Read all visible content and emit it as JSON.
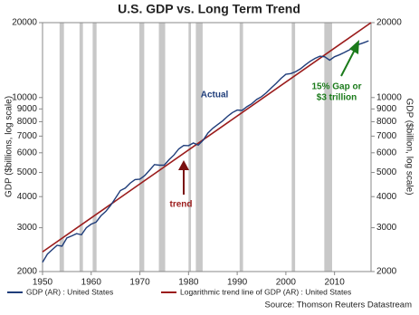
{
  "chart_data": {
    "type": "line",
    "title": "U.S. GDP vs. Long Term Trend",
    "y_label": "GDP ($billions, log scale)",
    "y2_label": "GDP ($billion, log scale)",
    "log_scale": true,
    "y2_mirrors_y": true,
    "xlim": [
      1950,
      2017.5
    ],
    "xticks": [
      1950,
      1960,
      1970,
      1980,
      1990,
      2000,
      2010
    ],
    "ylim": [
      2000,
      20000
    ],
    "yticks": [
      2000,
      3000,
      4000,
      5000,
      6000,
      7000,
      8000,
      9000,
      10000,
      20000
    ],
    "y2lim": [
      2000,
      20000
    ],
    "y2ticks": [
      2000,
      3000,
      4000,
      5000,
      6000,
      7000,
      8000,
      9000,
      10000,
      20000
    ],
    "recessions": [
      [
        1953.5,
        1954.4
      ],
      [
        1957.6,
        1958.3
      ],
      [
        1960.3,
        1961.1
      ],
      [
        1969.9,
        1970.9
      ],
      [
        1973.9,
        1975.2
      ],
      [
        1980.0,
        1980.5
      ],
      [
        1981.5,
        1982.9
      ],
      [
        1990.5,
        1991.2
      ],
      [
        2001.2,
        2001.9
      ],
      [
        2007.9,
        2009.5
      ]
    ],
    "recession_color": "#c8c8c8",
    "series": [
      {
        "name": "GDP (AR) : United States",
        "color": "#1f3d7a",
        "x": [
          1950,
          1951,
          1952,
          1953,
          1954,
          1955,
          1956,
          1957,
          1958,
          1959,
          1960,
          1961,
          1962,
          1963,
          1964,
          1965,
          1966,
          1967,
          1968,
          1969,
          1970,
          1971,
          1972,
          1973,
          1974,
          1975,
          1976,
          1977,
          1978,
          1979,
          1980,
          1981,
          1982,
          1983,
          1984,
          1985,
          1986,
          1987,
          1988,
          1989,
          1990,
          1991,
          1992,
          1993,
          1994,
          1995,
          1996,
          1997,
          1998,
          1999,
          2000,
          2001,
          2002,
          2003,
          2004,
          2005,
          2006,
          2007,
          2008,
          2009,
          2010,
          2011,
          2012,
          2013,
          2014,
          2015,
          2016,
          2017
        ],
        "values": [
          2180,
          2350,
          2450,
          2550,
          2530,
          2730,
          2780,
          2840,
          2810,
          3000,
          3100,
          3160,
          3350,
          3490,
          3690,
          3950,
          4230,
          4330,
          4530,
          4680,
          4700,
          4860,
          5110,
          5380,
          5350,
          5350,
          5630,
          5880,
          6220,
          6420,
          6410,
          6570,
          6440,
          6740,
          7210,
          7530,
          7790,
          8060,
          8400,
          8700,
          8910,
          8880,
          9190,
          9450,
          9830,
          10080,
          10460,
          10930,
          11400,
          11940,
          12400,
          12480,
          12700,
          13050,
          13530,
          13990,
          14370,
          14660,
          14570,
          14130,
          14590,
          14850,
          15170,
          15520,
          15910,
          16350,
          16610,
          16900
        ]
      },
      {
        "name": "Logarithmic trend line of GDP (AR) : United States",
        "color": "#9b1c1c",
        "x": [
          1950,
          2017.5
        ],
        "values": [
          2400,
          20000
        ]
      }
    ],
    "annotations": {
      "actual": "Actual",
      "trend": "trend",
      "gap": [
        "15% Gap or",
        "$3 trillion"
      ]
    },
    "source": "Source: Thomson Reuters Datastream"
  }
}
